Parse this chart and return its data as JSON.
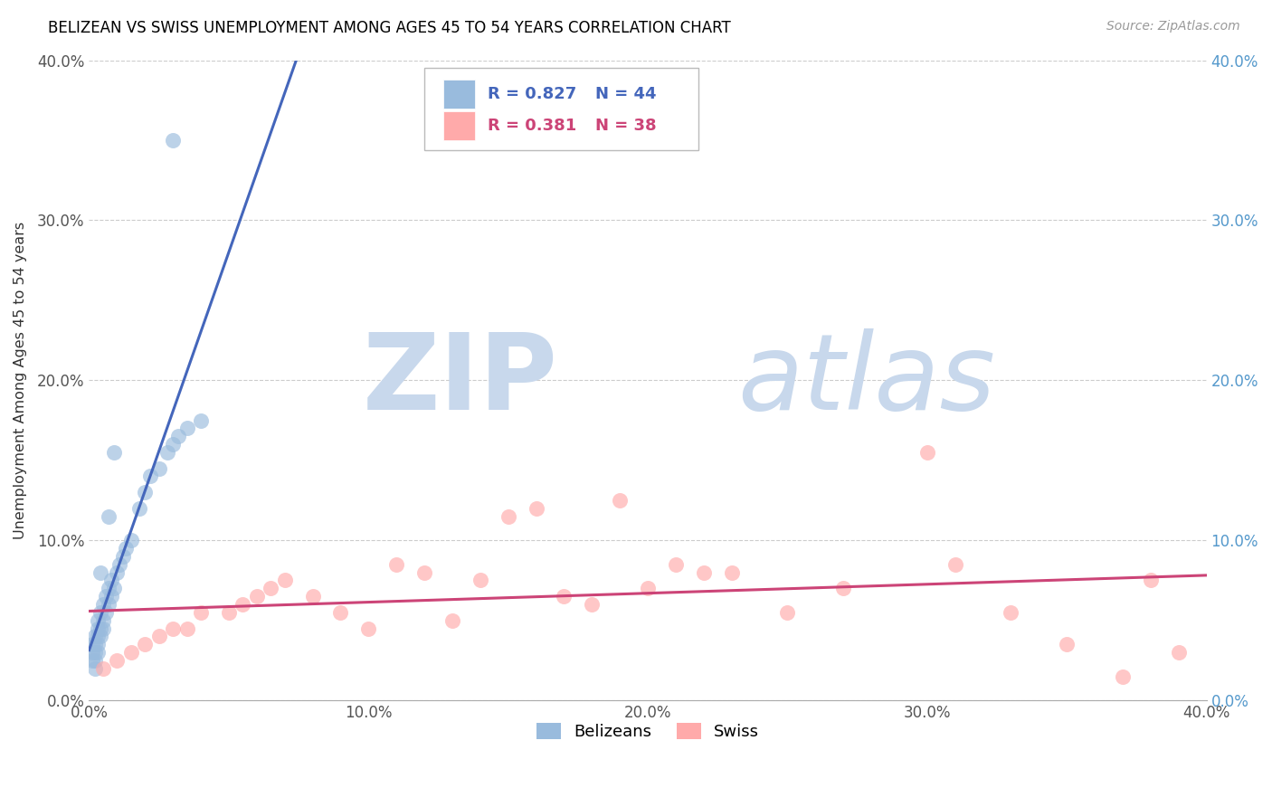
{
  "title": "BELIZEAN VS SWISS UNEMPLOYMENT AMONG AGES 45 TO 54 YEARS CORRELATION CHART",
  "source": "Source: ZipAtlas.com",
  "ylabel": "Unemployment Among Ages 45 to 54 years",
  "xlim": [
    0.0,
    0.4
  ],
  "ylim": [
    0.0,
    0.4
  ],
  "xticks": [
    0.0,
    0.1,
    0.2,
    0.3,
    0.4
  ],
  "yticks": [
    0.0,
    0.1,
    0.2,
    0.3,
    0.4
  ],
  "xticklabels": [
    "0.0%",
    "10.0%",
    "20.0%",
    "30.0%",
    "40.0%"
  ],
  "yticklabels": [
    "0.0%",
    "10.0%",
    "20.0%",
    "30.0%",
    "40.0%"
  ],
  "belizean_color": "#99BBDD",
  "swiss_color": "#FFAAAA",
  "belizean_line_color": "#4466BB",
  "swiss_line_color": "#CC4477",
  "legend_r_belizean": "0.827",
  "legend_n_belizean": "44",
  "legend_r_swiss": "0.381",
  "legend_n_swiss": "38",
  "watermark_zip_color": "#C8D8EC",
  "watermark_atlas_color": "#C8D8EC",
  "belizean_x": [
    0.001,
    0.001,
    0.001,
    0.002,
    0.002,
    0.002,
    0.002,
    0.002,
    0.003,
    0.003,
    0.003,
    0.003,
    0.003,
    0.004,
    0.004,
    0.004,
    0.005,
    0.005,
    0.005,
    0.006,
    0.006,
    0.007,
    0.007,
    0.008,
    0.008,
    0.009,
    0.01,
    0.011,
    0.012,
    0.013,
    0.015,
    0.018,
    0.02,
    0.022,
    0.025,
    0.028,
    0.03,
    0.032,
    0.035,
    0.04,
    0.009,
    0.007,
    0.004,
    0.03
  ],
  "belizean_y": [
    0.025,
    0.03,
    0.035,
    0.02,
    0.025,
    0.03,
    0.035,
    0.04,
    0.03,
    0.035,
    0.04,
    0.045,
    0.05,
    0.04,
    0.045,
    0.055,
    0.045,
    0.05,
    0.06,
    0.055,
    0.065,
    0.06,
    0.07,
    0.065,
    0.075,
    0.07,
    0.08,
    0.085,
    0.09,
    0.095,
    0.1,
    0.12,
    0.13,
    0.14,
    0.145,
    0.155,
    0.16,
    0.165,
    0.17,
    0.175,
    0.155,
    0.115,
    0.08,
    0.35
  ],
  "swiss_x": [
    0.005,
    0.01,
    0.015,
    0.02,
    0.025,
    0.03,
    0.035,
    0.04,
    0.05,
    0.055,
    0.06,
    0.065,
    0.07,
    0.08,
    0.09,
    0.1,
    0.11,
    0.12,
    0.13,
    0.14,
    0.15,
    0.16,
    0.17,
    0.18,
    0.19,
    0.2,
    0.21,
    0.22,
    0.23,
    0.25,
    0.27,
    0.3,
    0.31,
    0.33,
    0.35,
    0.37,
    0.38,
    0.39
  ],
  "swiss_y": [
    0.02,
    0.025,
    0.03,
    0.035,
    0.04,
    0.045,
    0.045,
    0.055,
    0.055,
    0.06,
    0.065,
    0.07,
    0.075,
    0.065,
    0.055,
    0.045,
    0.085,
    0.08,
    0.05,
    0.075,
    0.115,
    0.12,
    0.065,
    0.06,
    0.125,
    0.07,
    0.085,
    0.08,
    0.08,
    0.055,
    0.07,
    0.155,
    0.085,
    0.055,
    0.035,
    0.015,
    0.075,
    0.03
  ],
  "background_color": "#FFFFFF",
  "grid_color": "#CCCCCC"
}
